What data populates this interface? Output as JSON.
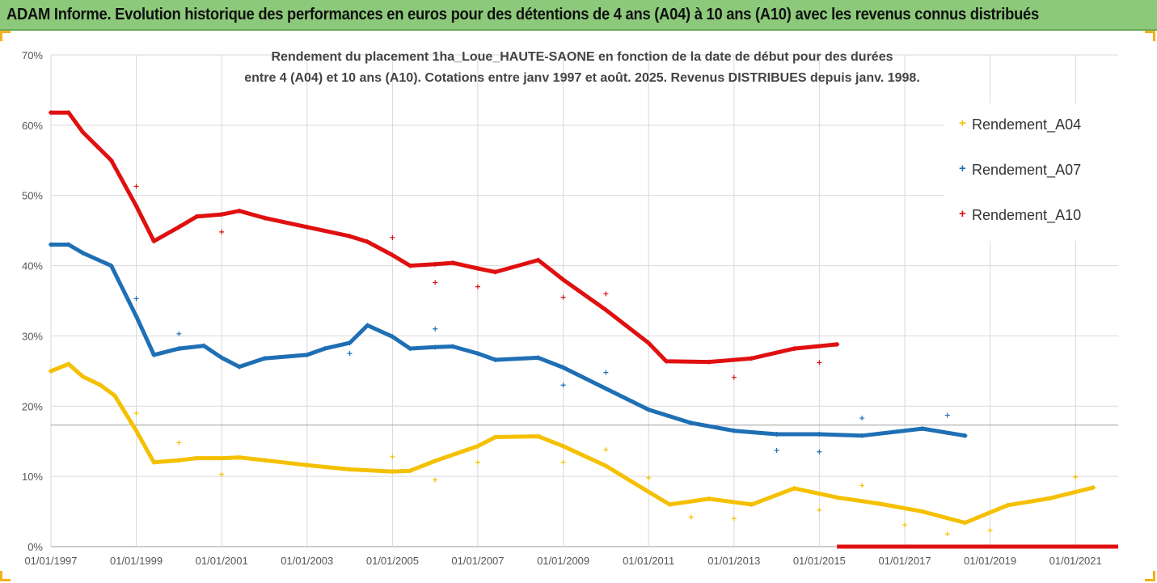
{
  "page": {
    "title": "ADAM Informe. Evolution historique des performances en euros pour des détentions de 4 ans (A04) à 10 ans (A10) avec les revenus connus distribués"
  },
  "chart_data": {
    "type": "scatter",
    "title_line1": "Rendement du placement 1ha_Loue_HAUTE-SAONE en fonction de la date de début pour des durées",
    "title_line2": "entre 4 (A04) et 10 ans (A10). Cotations entre janv 1997 et août. 2025. Revenus DISTRIBUES depuis janv. 1998.",
    "xlabel": "",
    "ylabel": "",
    "x_range": [
      "1997-01-01",
      "2022-01-01"
    ],
    "ylim": [
      0,
      70
    ],
    "x_ticks": [
      "01/01/1997",
      "01/01/1999",
      "01/01/2001",
      "01/01/2003",
      "01/01/2005",
      "01/01/2007",
      "01/01/2009",
      "01/01/2011",
      "01/01/2013",
      "01/01/2015",
      "01/01/2017",
      "01/01/2019",
      "01/01/2021"
    ],
    "y_ticks": [
      "0%",
      "10%",
      "20%",
      "30%",
      "40%",
      "50%",
      "60%",
      "70%"
    ],
    "grid": true,
    "legend_position": "right",
    "series": [
      {
        "name": "Rendement_A04",
        "color": "#f5c000",
        "points": [
          [
            "1997-01-01",
            25.0
          ],
          [
            "1997-06-01",
            26.0
          ],
          [
            "1997-10-01",
            24.2
          ],
          [
            "1998-03-01",
            23.0
          ],
          [
            "1998-07-01",
            21.5
          ],
          [
            "1999-01-01",
            16.5
          ],
          [
            "1999-06-01",
            12.0
          ],
          [
            "2000-01-01",
            12.3
          ],
          [
            "2000-06-01",
            12.6
          ],
          [
            "2001-01-01",
            12.6
          ],
          [
            "2001-06-01",
            12.7
          ],
          [
            "2002-01-01",
            12.3
          ],
          [
            "2003-01-01",
            11.6
          ],
          [
            "2004-01-01",
            11.0
          ],
          [
            "2005-01-01",
            10.7
          ],
          [
            "2005-06-01",
            10.8
          ],
          [
            "2006-01-01",
            12.2
          ],
          [
            "2007-01-01",
            14.3
          ],
          [
            "2007-06-01",
            15.6
          ],
          [
            "2008-06-01",
            15.7
          ],
          [
            "2009-01-01",
            14.3
          ],
          [
            "2010-01-01",
            11.5
          ],
          [
            "2011-01-01",
            7.8
          ],
          [
            "2011-07-01",
            6.0
          ],
          [
            "2012-06-01",
            6.8
          ],
          [
            "2013-06-01",
            6.0
          ],
          [
            "2014-06-01",
            8.3
          ],
          [
            "2015-06-01",
            7.0
          ],
          [
            "2016-06-01",
            6.1
          ],
          [
            "2017-06-01",
            5.0
          ],
          [
            "2018-06-01",
            3.4
          ],
          [
            "2019-06-01",
            5.9
          ],
          [
            "2020-06-01",
            6.9
          ],
          [
            "2021-06-01",
            8.4
          ]
        ],
        "outliers": [
          [
            "1999-01-01",
            19.0
          ],
          [
            "2000-01-01",
            14.8
          ],
          [
            "2001-01-01",
            10.3
          ],
          [
            "2005-01-01",
            12.8
          ],
          [
            "2006-01-01",
            9.5
          ],
          [
            "2007-01-01",
            12.0
          ],
          [
            "2009-01-01",
            12.0
          ],
          [
            "2010-01-01",
            13.8
          ],
          [
            "2011-01-01",
            9.8
          ],
          [
            "2012-01-01",
            4.2
          ],
          [
            "2013-01-01",
            4.0
          ],
          [
            "2015-01-01",
            5.2
          ],
          [
            "2016-01-01",
            8.7
          ],
          [
            "2017-01-01",
            3.1
          ],
          [
            "2018-01-01",
            1.8
          ],
          [
            "2019-01-01",
            2.3
          ],
          [
            "2021-01-01",
            9.9
          ]
        ]
      },
      {
        "name": "Rendement_A07",
        "color": "#1f6fb5",
        "points": [
          [
            "1997-01-01",
            43.0
          ],
          [
            "1997-06-01",
            43.0
          ],
          [
            "1997-10-01",
            41.8
          ],
          [
            "1998-06-01",
            40.0
          ],
          [
            "1999-01-01",
            32.8
          ],
          [
            "1999-06-01",
            27.3
          ],
          [
            "2000-01-01",
            28.2
          ],
          [
            "2000-08-01",
            28.6
          ],
          [
            "2001-01-01",
            26.9
          ],
          [
            "2001-06-01",
            25.6
          ],
          [
            "2002-01-01",
            26.8
          ],
          [
            "2003-01-01",
            27.3
          ],
          [
            "2003-06-01",
            28.2
          ],
          [
            "2004-01-01",
            29.0
          ],
          [
            "2004-06-01",
            31.5
          ],
          [
            "2005-01-01",
            29.9
          ],
          [
            "2005-06-01",
            28.2
          ],
          [
            "2006-01-01",
            28.4
          ],
          [
            "2006-06-01",
            28.5
          ],
          [
            "2007-01-01",
            27.5
          ],
          [
            "2007-06-01",
            26.6
          ],
          [
            "2008-06-01",
            26.9
          ],
          [
            "2009-01-01",
            25.5
          ],
          [
            "2010-01-01",
            22.5
          ],
          [
            "2011-01-01",
            19.5
          ],
          [
            "2012-01-01",
            17.6
          ],
          [
            "2013-01-01",
            16.5
          ],
          [
            "2014-01-01",
            16.0
          ],
          [
            "2015-01-01",
            16.0
          ],
          [
            "2016-01-01",
            15.8
          ],
          [
            "2017-06-01",
            16.8
          ],
          [
            "2018-06-01",
            15.8
          ]
        ],
        "outliers": [
          [
            "1999-01-01",
            35.3
          ],
          [
            "2000-01-01",
            30.3
          ],
          [
            "2004-01-01",
            27.5
          ],
          [
            "2006-01-01",
            31.0
          ],
          [
            "2009-01-01",
            23.0
          ],
          [
            "2010-01-01",
            24.8
          ],
          [
            "2014-01-01",
            13.7
          ],
          [
            "2015-01-01",
            13.5
          ],
          [
            "2016-01-01",
            18.3
          ],
          [
            "2018-01-01",
            18.7
          ]
        ]
      },
      {
        "name": "Rendement_A10",
        "color": "#e01010",
        "points": [
          [
            "1997-01-01",
            61.8
          ],
          [
            "1997-06-01",
            61.8
          ],
          [
            "1997-10-01",
            59.0
          ],
          [
            "1998-06-01",
            55.0
          ],
          [
            "1999-01-01",
            48.5
          ],
          [
            "1999-06-01",
            43.5
          ],
          [
            "2000-01-01",
            45.5
          ],
          [
            "2000-06-01",
            47.0
          ],
          [
            "2001-01-01",
            47.3
          ],
          [
            "2001-06-01",
            47.8
          ],
          [
            "2002-01-01",
            46.8
          ],
          [
            "2003-01-01",
            45.5
          ],
          [
            "2004-01-01",
            44.2
          ],
          [
            "2004-06-01",
            43.4
          ],
          [
            "2005-01-01",
            41.5
          ],
          [
            "2005-06-01",
            40.0
          ],
          [
            "2006-01-01",
            40.2
          ],
          [
            "2006-06-01",
            40.4
          ],
          [
            "2007-01-01",
            39.6
          ],
          [
            "2007-06-01",
            39.1
          ],
          [
            "2008-06-01",
            40.8
          ],
          [
            "2009-01-01",
            38.0
          ],
          [
            "2010-01-01",
            33.7
          ],
          [
            "2011-01-01",
            29.0
          ],
          [
            "2011-06-01",
            26.4
          ],
          [
            "2012-06-01",
            26.3
          ],
          [
            "2013-06-01",
            26.8
          ],
          [
            "2014-06-01",
            28.2
          ],
          [
            "2015-06-01",
            28.8
          ]
        ],
        "outliers": [
          [
            "1999-01-01",
            51.3
          ],
          [
            "2001-01-01",
            44.8
          ],
          [
            "2005-01-01",
            44.0
          ],
          [
            "2006-01-01",
            37.6
          ],
          [
            "2007-01-01",
            37.0
          ],
          [
            "2009-01-01",
            35.5
          ],
          [
            "2010-01-01",
            36.0
          ],
          [
            "2013-01-01",
            24.1
          ],
          [
            "2015-01-01",
            26.2
          ]
        ],
        "zero_run": [
          [
            "2015-06-01",
            0.0
          ],
          [
            "2022-01-01",
            0.0
          ]
        ]
      }
    ],
    "reference_line": 17.3
  }
}
